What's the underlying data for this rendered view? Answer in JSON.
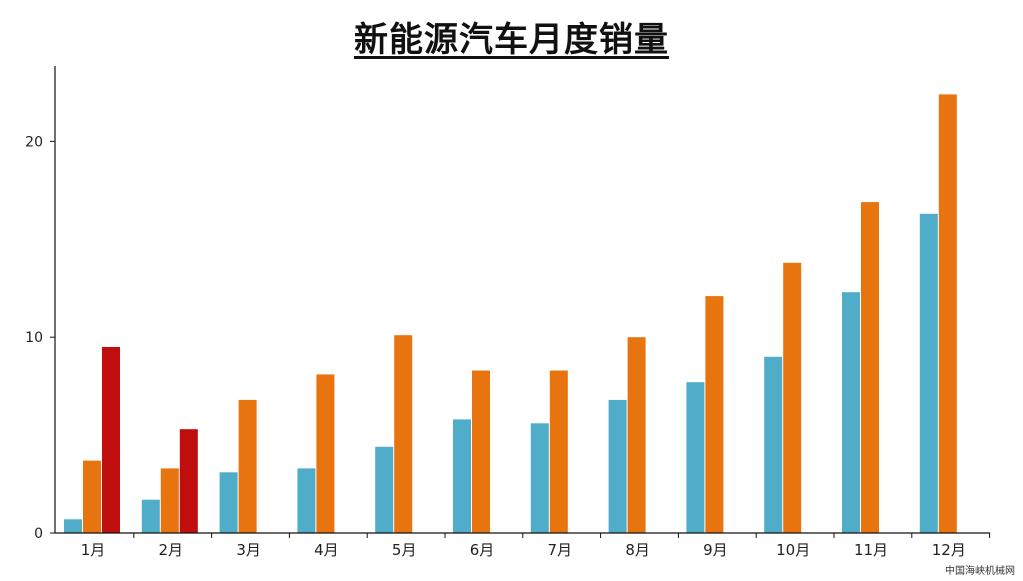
{
  "chart_data": {
    "type": "bar",
    "title": "新能源汽车月度销量",
    "xlabel": "",
    "ylabel": "",
    "categories": [
      "1月",
      "2月",
      "3月",
      "4月",
      "5月",
      "6月",
      "7月",
      "8月",
      "9月",
      "10月",
      "11月",
      "12月"
    ],
    "series": [
      {
        "color": "#4fadc9",
        "values": [
          0.7,
          1.7,
          3.1,
          3.3,
          4.4,
          5.8,
          5.6,
          6.8,
          7.7,
          9.0,
          12.3,
          16.3
        ]
      },
      {
        "color": "#e8740f",
        "values": [
          3.7,
          3.3,
          6.8,
          8.1,
          10.1,
          8.3,
          8.3,
          10.0,
          12.1,
          13.8,
          16.9,
          22.4
        ]
      },
      {
        "color": "#c00d0d",
        "values": [
          9.5,
          5.3,
          null,
          null,
          null,
          null,
          null,
          null,
          null,
          null,
          null,
          null
        ]
      }
    ],
    "yticks": [
      0,
      10,
      20
    ],
    "ylim": [
      0,
      23.85
    ],
    "grid": false,
    "legend": "none"
  },
  "watermark": "中国海峡机械网"
}
